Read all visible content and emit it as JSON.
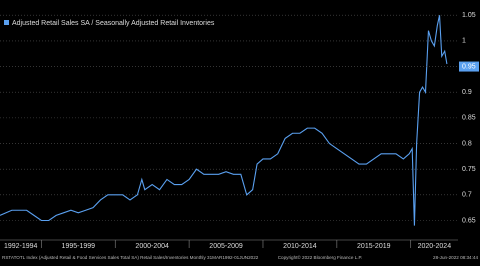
{
  "chart_data": {
    "type": "line",
    "legend": "Adjusted Retail Sales SA / Seasonally Adjusted Retail Inventories",
    "series": [
      {
        "name": "Adjusted Retail Sales SA / Seasonally Adjusted Retail Inventories",
        "color": "#5aa0f0",
        "x": [
          1992.2,
          1993,
          1994,
          1994.5,
          1995,
          1995.5,
          1996,
          1996.5,
          1997,
          1997.5,
          1998,
          1998.5,
          1999,
          1999.5,
          2000,
          2000.5,
          2001,
          2001.5,
          2001.8,
          2002,
          2002.5,
          2003,
          2003.5,
          2004,
          2004.5,
          2005,
          2005.5,
          2006,
          2006.5,
          2007,
          2007.5,
          2008,
          2008.5,
          2008.9,
          2009.3,
          2009.6,
          2010,
          2010.5,
          2011,
          2011.5,
          2012,
          2012.5,
          2013,
          2013.5,
          2014,
          2014.5,
          2015,
          2015.5,
          2016,
          2016.5,
          2017,
          2017.5,
          2018,
          2018.5,
          2019,
          2019.5,
          2019.9,
          2020.1,
          2020.25,
          2020.4,
          2020.6,
          2020.8,
          2021,
          2021.2,
          2021.4,
          2021.6,
          2021.8,
          2021.95,
          2022.1,
          2022.3,
          2022.45
        ],
        "values": [
          0.66,
          0.67,
          0.67,
          0.66,
          0.65,
          0.65,
          0.66,
          0.665,
          0.67,
          0.665,
          0.67,
          0.675,
          0.69,
          0.7,
          0.7,
          0.7,
          0.69,
          0.7,
          0.73,
          0.71,
          0.72,
          0.71,
          0.73,
          0.72,
          0.72,
          0.73,
          0.75,
          0.74,
          0.74,
          0.74,
          0.745,
          0.74,
          0.74,
          0.7,
          0.71,
          0.76,
          0.77,
          0.77,
          0.78,
          0.81,
          0.82,
          0.82,
          0.83,
          0.83,
          0.82,
          0.8,
          0.79,
          0.78,
          0.77,
          0.76,
          0.76,
          0.77,
          0.78,
          0.78,
          0.78,
          0.77,
          0.78,
          0.79,
          0.64,
          0.8,
          0.9,
          0.91,
          0.9,
          1.02,
          1.0,
          0.99,
          1.03,
          1.05,
          0.97,
          0.98,
          0.955
        ]
      }
    ],
    "last_value": 0.95,
    "xlim": [
      1992.2,
      2023.2
    ],
    "ylim": [
      0.612,
      1.068
    ],
    "yticks": [
      0.65,
      0.7,
      0.75,
      0.8,
      0.85,
      0.9,
      1.0,
      1.05
    ],
    "xbands": [
      {
        "label": "1992-1994",
        "start": 1992,
        "end": 1995
      },
      {
        "label": "1995-1999",
        "start": 1995,
        "end": 2000
      },
      {
        "label": "2000-2004",
        "start": 2000,
        "end": 2005
      },
      {
        "label": "2005-2009",
        "start": 2005,
        "end": 2010
      },
      {
        "label": "2010-2014",
        "start": 2010,
        "end": 2015
      },
      {
        "label": "2015-2019",
        "start": 2015,
        "end": 2020
      },
      {
        "label": "2020-2024",
        "start": 2020,
        "end": 2025
      }
    ],
    "grid": true,
    "footer": {
      "source": "RSTATOTL Index (Adjusted Retail & Food Services Sales Total SA) Retail Sales/Inventories Monthly 31MAR1992-01JUN2022",
      "copyright": "Copyright© 2022 Bloomberg Finance L.P.",
      "timestamp": "28-Jun-2022 08:34:44"
    }
  }
}
